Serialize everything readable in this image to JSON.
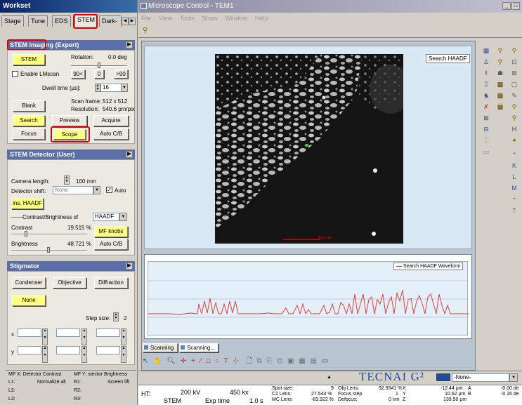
{
  "left_window": {
    "title": "Workset",
    "tabs": [
      "Stage",
      "Tune",
      "EDS",
      "STEM",
      "Dark-Fi"
    ],
    "active_tab": "STEM"
  },
  "stem_imaging": {
    "header": "STEM Imaging (Expert)",
    "stem_button": "STEM",
    "rotation_label": "Rotation:",
    "rotation_value": "0.0 deg",
    "enable_lmscan": "Enable LMscan",
    "rot_buttons": [
      "90<",
      "0",
      ">90"
    ],
    "dwell_label": "Dwell time [µs]:",
    "dwell_value": "16",
    "scan_frame_label": "Scan frame:",
    "scan_frame_value": "512  x  512",
    "resolution_label": "Resolution:",
    "resolution_value": "540.6 pm/pix",
    "blank": "Blank",
    "search": "Search",
    "preview": "Preview",
    "acquire": "Acquire",
    "focus": "Focus",
    "scope": "Scope",
    "auto_cb": "Auto C/B"
  },
  "stem_detector": {
    "header": "STEM Detector (User)",
    "camera_length_label": "Camera length:",
    "camera_length_value": "100 mm",
    "detector_shift_label": "Detector shift:",
    "detector_shift_value": "None",
    "auto_label": "Auto",
    "ins_haadf": "ins. HAADF",
    "cb_of_label": "Contrast/Brightness of",
    "cb_of_value": "HAADF",
    "contrast_label": "Contrast",
    "contrast_value": "19.515 %",
    "mf_knobs": "MF knobs",
    "brightness_label": "Brightness",
    "brightness_value": "48.721 %",
    "auto_cb": "Auto C/B"
  },
  "stigmator": {
    "header": "Stigmator",
    "condenser": "Condenser",
    "objective": "Objective",
    "diffraction": "Diffraction",
    "none": "None",
    "step_size_label": "Step size:",
    "step_size_value": "2",
    "x_label": "x",
    "y_label": "y"
  },
  "bottom_left": {
    "row1a": "MF X: Detector Contrast",
    "row1b": "MF Y: stector Brightness",
    "l1": "L1:",
    "l1v": "Normalize all",
    "r1": "R1:",
    "r1v": "Screen lift",
    "l2": "L2:",
    "r2": "R2:",
    "l3": "L3:",
    "r3": "R3:"
  },
  "main_window": {
    "title": "Microscope Control - TEM1",
    "menu": [
      "File",
      "View",
      "Tools",
      "Show",
      "Window",
      "Help"
    ]
  },
  "image_view": {
    "search_label": "Search HAADF",
    "scale_text": "50 nm"
  },
  "waveform": {
    "legend": "Search HAADF Waveform"
  },
  "scanning_tabs": [
    "Scanning",
    "Scanning..."
  ],
  "status": {
    "brand": "TECNAI G²",
    "none_select": "-None-",
    "ht_label": "HT:",
    "ht_value": "200 kV",
    "mag_value": "450 kx",
    "mode": "STEM",
    "exp_time_label": "Exp time",
    "exp_time_value": "1.0 s",
    "spot_size_label": "Spot size:",
    "spot_size_value": "9",
    "c2_lens_label": "C2 Lens:",
    "c2_lens_value": "27.544 %",
    "mc_lens_label": "MC Lens:",
    "mc_lens_value": "-83.922 %",
    "obj_lens_label": "Obj Lens:",
    "obj_lens_value": "92.9341 %",
    "focus_step_label": "Focus step",
    "focus_step_value": "1",
    "defocus_label": "Defocus:",
    "defocus_value": "0 nm",
    "x_label": "X",
    "x_value": "-12.44 µm",
    "y_label": "Y",
    "y_value": "10.62 µm",
    "z_label": "Z",
    "z_value": "139.50 µm",
    "a_label": "A",
    "a_value": "-0.00 de",
    "b_label": "B",
    "b_value": "-0.16 de"
  },
  "colors": {
    "accent_red": "#e00000",
    "title_blue": "#0a246a",
    "panel_blue": "#5a6ea8",
    "button_yellow": "#ffff80",
    "waveform_red": "#e03030",
    "view_bg": "#d8e8f4"
  }
}
